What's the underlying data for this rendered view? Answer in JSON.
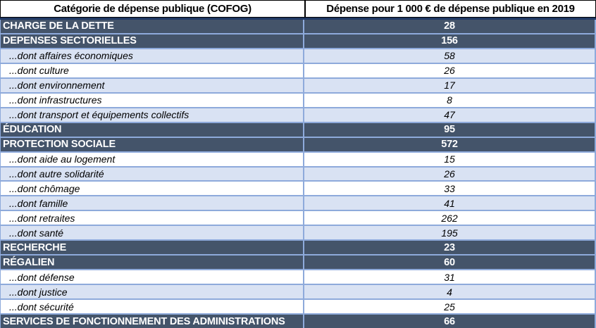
{
  "chart_data": {
    "type": "table",
    "columns": [
      "Catégorie de dépense publique (COFOG)",
      "Dépense pour 1 000 € de dépense publique en 2019"
    ],
    "rows": [
      {
        "label": "CHARGE DE LA DETTE",
        "value": "28",
        "style": "dark",
        "indent": false
      },
      {
        "label": "DEPENSES SECTORIELLES",
        "value": "156",
        "style": "dark",
        "indent": false
      },
      {
        "label": "...dont affaires économiques",
        "value": "58",
        "style": "blue",
        "indent": true
      },
      {
        "label": "...dont culture",
        "value": "26",
        "style": "white",
        "indent": true
      },
      {
        "label": "...dont environnement",
        "value": "17",
        "style": "blue",
        "indent": true
      },
      {
        "label": "...dont infrastructures",
        "value": "8",
        "style": "white",
        "indent": true
      },
      {
        "label": "...dont transport et équipements collectifs",
        "value": "47",
        "style": "blue",
        "indent": true
      },
      {
        "label": "ÉDUCATION",
        "value": "95",
        "style": "dark",
        "indent": false
      },
      {
        "label": "PROTECTION SOCIALE",
        "value": "572",
        "style": "dark",
        "indent": false
      },
      {
        "label": "...dont aide au logement",
        "value": "15",
        "style": "white",
        "indent": true
      },
      {
        "label": "...dont autre solidarité",
        "value": "26",
        "style": "blue",
        "indent": true
      },
      {
        "label": "...dont chômage",
        "value": "33",
        "style": "white",
        "indent": true
      },
      {
        "label": "...dont famille",
        "value": "41",
        "style": "blue",
        "indent": true
      },
      {
        "label": "...dont retraites",
        "value": "262",
        "style": "white",
        "indent": true
      },
      {
        "label": "...dont santé",
        "value": "195",
        "style": "blue",
        "indent": true
      },
      {
        "label": "RECHERCHE",
        "value": "23",
        "style": "dark",
        "indent": false
      },
      {
        "label": "RÉGALIEN",
        "value": "60",
        "style": "dark",
        "indent": false
      },
      {
        "label": "...dont défense",
        "value": "31",
        "style": "white",
        "indent": true
      },
      {
        "label": "...dont justice",
        "value": "4",
        "style": "blue",
        "indent": true
      },
      {
        "label": "...dont sécurité",
        "value": "25",
        "style": "white",
        "indent": true
      },
      {
        "label": "SERVICES DE FONCTIONNEMENT DES ADMINISTRATIONS",
        "value": "66",
        "style": "dark",
        "indent": false
      }
    ]
  },
  "colors": {
    "category_row_bg": "#44546A",
    "category_row_text": "#FFFFFF",
    "alt_row_bg": "#D9E2F3",
    "row_divider": "#8EAADB",
    "header_underline": "#1F3864",
    "header_text": "#000000",
    "header_bg": "#FFFFFF"
  }
}
